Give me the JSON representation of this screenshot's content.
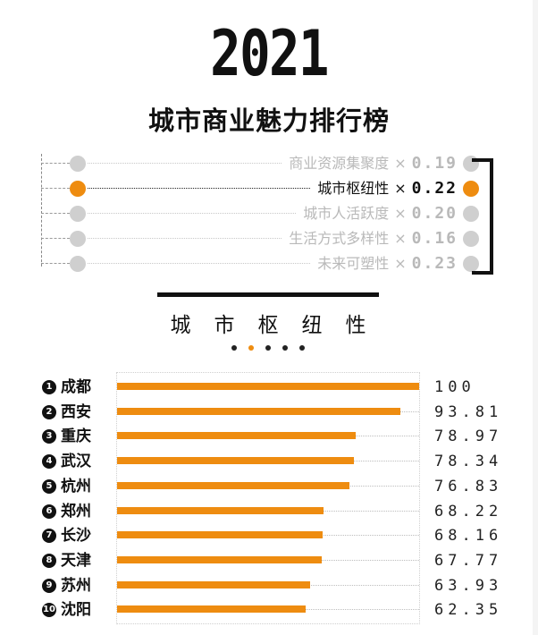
{
  "header": {
    "year": "2021",
    "title": "城市商业魅力排行榜"
  },
  "weights": [
    {
      "name": "商业资源集聚度",
      "times": "×",
      "value": "0.19",
      "active": false
    },
    {
      "name": "城市枢纽性",
      "times": "×",
      "value": "0.22",
      "active": true
    },
    {
      "name": "城市人活跃度",
      "times": "×",
      "value": "0.20",
      "active": false
    },
    {
      "name": "生活方式多样性",
      "times": "×",
      "value": "0.16",
      "active": false
    },
    {
      "name": "未来可塑性",
      "times": "×",
      "value": "0.23",
      "active": false
    }
  ],
  "section": {
    "title": "城市枢纽性",
    "pager_count": 5,
    "pager_active": 1
  },
  "colors": {
    "accent": "#ee8c10",
    "inactive": "#cfcfcf",
    "text": "#111111"
  },
  "chart_data": {
    "type": "bar",
    "orientation": "horizontal",
    "categories": [
      "成都",
      "西安",
      "重庆",
      "武汉",
      "杭州",
      "郑州",
      "长沙",
      "天津",
      "苏州",
      "沈阳"
    ],
    "ranks": [
      "1",
      "2",
      "3",
      "4",
      "5",
      "6",
      "7",
      "8",
      "9",
      "10"
    ],
    "values": [
      100,
      93.81,
      78.97,
      78.34,
      76.83,
      68.22,
      68.16,
      67.77,
      63.93,
      62.35
    ],
    "value_labels": [
      "100",
      "93.81",
      "78.97",
      "78.34",
      "76.83",
      "68.22",
      "68.16",
      "67.77",
      "63.93",
      "62.35"
    ],
    "xlim": [
      0,
      100
    ],
    "grid": "dotted row guides",
    "color": "#ee8c10"
  }
}
